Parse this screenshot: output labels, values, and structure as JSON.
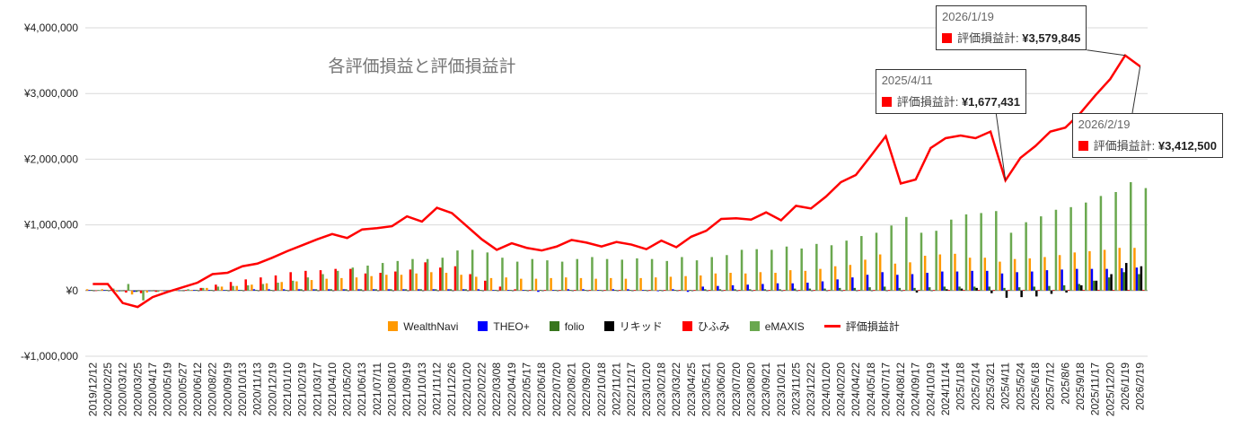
{
  "chart_data": {
    "type": "bar",
    "title": "各評価損益と評価損益計",
    "categories": [
      "2019/12/12",
      "2020/02/25",
      "2020/03/12",
      "2020/03/25",
      "2020/04/17",
      "2020/05/19",
      "2020/05/27",
      "2020/06/12",
      "2020/08/22",
      "2020/09/19",
      "2020/10/13",
      "2020/11/13",
      "2020/12/19",
      "2021/01/10",
      "2021/02/19",
      "2021/03/17",
      "2021/04/10",
      "2021/05/20",
      "2021/06/13",
      "2021/07/11",
      "2021/08/10",
      "2021/09/19",
      "2021/10/13",
      "2021/11/12",
      "2021/12/26",
      "2022/01/20",
      "2022/02/22",
      "2022/03/08",
      "2022/04/19",
      "2022/05/17",
      "2022/06/18",
      "2022/07/20",
      "2022/08/21",
      "2022/09/20",
      "2022/10/18",
      "2022/11/21",
      "2022/12/17",
      "2023/01/20",
      "2023/02/18",
      "2023/03/22",
      "2023/04/25",
      "2023/05/21",
      "2023/06/20",
      "2023/07/20",
      "2023/08/20",
      "2023/09/21",
      "2023/10/21",
      "2023/11/25",
      "2023/12/22",
      "2024/01/20",
      "2024/02/20",
      "2024/04/22",
      "2024/05/18",
      "2024/07/17",
      "2024/08/12",
      "2024/09/17",
      "2024/10/19",
      "2024/11/14",
      "2025/1/18",
      "2025/2/14",
      "2025/3/21",
      "2025/4/11",
      "2025/5/24",
      "2025/6/18",
      "2025/7/12",
      "2025/8/6",
      "2025/9/18",
      "2025/11/17",
      "2025/12/20",
      "2026/1/19",
      "2026/2/19"
    ],
    "series": [
      {
        "name": "WealthNavi",
        "color": "#ff9900",
        "values": [
          20000,
          20000,
          -20000,
          -60000,
          -30000,
          -10000,
          0,
          10000,
          40000,
          60000,
          70000,
          90000,
          110000,
          130000,
          140000,
          160000,
          180000,
          190000,
          200000,
          220000,
          240000,
          240000,
          260000,
          280000,
          270000,
          240000,
          210000,
          190000,
          200000,
          180000,
          180000,
          190000,
          200000,
          190000,
          180000,
          190000,
          180000,
          190000,
          200000,
          210000,
          220000,
          230000,
          260000,
          270000,
          260000,
          280000,
          270000,
          310000,
          300000,
          330000,
          370000,
          390000,
          470000,
          550000,
          410000,
          430000,
          530000,
          550000,
          560000,
          500000,
          500000,
          440000,
          480000,
          490000,
          510000,
          540000,
          580000,
          600000,
          620000,
          650000,
          650000
        ]
      },
      {
        "name": "THEO+",
        "color": "#0000ff",
        "values": [
          10000,
          10000,
          -10000,
          -20000,
          -10000,
          0,
          0,
          10000,
          10000,
          10000,
          10000,
          20000,
          20000,
          20000,
          20000,
          20000,
          20000,
          20000,
          20000,
          20000,
          20000,
          20000,
          20000,
          20000,
          20000,
          20000,
          20000,
          10000,
          10000,
          10000,
          -20000,
          10000,
          20000,
          20000,
          10000,
          20000,
          20000,
          10000,
          -10000,
          20000,
          -20000,
          60000,
          70000,
          80000,
          90000,
          100000,
          110000,
          110000,
          120000,
          140000,
          170000,
          200000,
          240000,
          280000,
          240000,
          250000,
          270000,
          290000,
          290000,
          300000,
          300000,
          260000,
          280000,
          290000,
          310000,
          320000,
          330000,
          330000,
          330000,
          340000,
          350000
        ]
      },
      {
        "name": "folio",
        "color": "#38761d",
        "values": [
          10000,
          10000,
          -10000,
          -20000,
          -10000,
          0,
          0,
          10000,
          10000,
          10000,
          10000,
          10000,
          10000,
          10000,
          20000,
          20000,
          20000,
          20000,
          20000,
          20000,
          20000,
          20000,
          20000,
          20000,
          20000,
          20000,
          10000,
          10000,
          10000,
          10000,
          10000,
          10000,
          10000,
          10000,
          10000,
          10000,
          10000,
          10000,
          10000,
          10000,
          10000,
          20000,
          20000,
          20000,
          20000,
          20000,
          20000,
          30000,
          30000,
          30000,
          40000,
          40000,
          50000,
          60000,
          40000,
          40000,
          50000,
          60000,
          60000,
          60000,
          60000,
          40000,
          50000,
          60000,
          70000,
          80000,
          100000,
          150000,
          200000,
          280000,
          250000
        ]
      },
      {
        "name": "リキッド",
        "color": "#000000",
        "values": [
          0,
          0,
          0,
          0,
          0,
          0,
          0,
          0,
          0,
          0,
          0,
          0,
          0,
          0,
          0,
          0,
          0,
          0,
          0,
          0,
          0,
          0,
          0,
          0,
          0,
          0,
          0,
          0,
          0,
          0,
          0,
          0,
          0,
          0,
          0,
          0,
          0,
          0,
          0,
          0,
          0,
          0,
          0,
          0,
          0,
          0,
          0,
          0,
          0,
          0,
          0,
          0,
          0,
          0,
          0,
          -30000,
          0,
          20000,
          30000,
          40000,
          -40000,
          -110000,
          -100000,
          -90000,
          -50000,
          -30000,
          80000,
          150000,
          250000,
          420000,
          370000
        ]
      },
      {
        "name": "ひふみ",
        "color": "#ff0000",
        "values": [
          0,
          10000,
          -30000,
          -40000,
          -20000,
          0,
          10000,
          40000,
          90000,
          130000,
          170000,
          200000,
          230000,
          280000,
          300000,
          310000,
          330000,
          330000,
          260000,
          270000,
          290000,
          320000,
          430000,
          350000,
          370000,
          250000,
          150000,
          60000,
          20000,
          10000,
          10000,
          10000,
          10000,
          10000,
          10000,
          10000,
          10000,
          10000,
          10000,
          10000,
          10000,
          10000,
          10000,
          10000,
          10000,
          10000,
          10000,
          10000,
          10000,
          10000,
          10000,
          10000,
          10000,
          10000,
          10000,
          10000,
          10000,
          10000,
          10000,
          10000,
          10000,
          10000,
          10000,
          10000,
          10000,
          10000,
          10000,
          10000,
          10000,
          10000,
          10000
        ]
      },
      {
        "name": "eMAXIS",
        "color": "#6aa84f",
        "values": [
          10000,
          30000,
          100000,
          -150000,
          -20000,
          10000,
          20000,
          40000,
          60000,
          70000,
          80000,
          100000,
          120000,
          150000,
          200000,
          250000,
          300000,
          350000,
          380000,
          420000,
          450000,
          480000,
          480000,
          500000,
          610000,
          620000,
          580000,
          500000,
          440000,
          480000,
          460000,
          440000,
          480000,
          510000,
          480000,
          470000,
          490000,
          480000,
          450000,
          510000,
          460000,
          510000,
          540000,
          620000,
          630000,
          620000,
          670000,
          640000,
          710000,
          690000,
          760000,
          830000,
          880000,
          990000,
          1120000,
          880000,
          910000,
          1080000,
          1160000,
          1180000,
          1210000,
          880000,
          1040000,
          1130000,
          1230000,
          1270000,
          1340000,
          1440000,
          1500000,
          1650000,
          1560000
        ]
      },
      {
        "name": "評価損益計",
        "color": "#ff0000",
        "type": "line",
        "values": [
          100000,
          100000,
          -190000,
          -250000,
          -100000,
          -20000,
          50000,
          120000,
          250000,
          270000,
          370000,
          410000,
          500000,
          600000,
          690000,
          780000,
          860000,
          800000,
          930000,
          950000,
          980000,
          1130000,
          1050000,
          1260000,
          1180000,
          980000,
          780000,
          620000,
          720000,
          650000,
          610000,
          670000,
          770000,
          730000,
          670000,
          740000,
          700000,
          630000,
          760000,
          660000,
          820000,
          910000,
          1090000,
          1100000,
          1080000,
          1190000,
          1070000,
          1290000,
          1250000,
          1430000,
          1650000,
          1760000,
          2050000,
          2350000,
          1630000,
          1690000,
          2170000,
          2320000,
          2360000,
          2320000,
          2420000,
          1677431,
          2020000,
          2200000,
          2420000,
          2480000,
          2700000,
          2970000,
          3220000,
          3579845,
          3412500
        ],
        "value_labels": [
          null,
          null,
          null,
          null,
          null,
          null,
          null,
          null,
          null,
          null,
          null,
          null,
          null,
          null,
          null,
          null,
          null,
          null,
          null,
          null,
          null,
          null,
          null,
          null,
          null,
          null,
          null,
          null,
          null,
          null,
          null,
          null,
          null,
          null,
          null,
          null,
          null,
          null,
          null,
          null,
          null,
          null,
          null,
          null,
          null,
          null,
          null,
          null,
          null,
          null,
          null,
          null,
          null,
          null,
          null,
          null,
          null,
          null,
          null,
          null,
          null,
          "¥1,677,431",
          null,
          null,
          null,
          null,
          null,
          null,
          null,
          "¥3,579,845",
          "¥3,412,500"
        ]
      }
    ],
    "ylim": [
      -1000000,
      4000000
    ],
    "yticks": [
      {
        "value": -1000000,
        "label": "-¥1,000,000"
      },
      {
        "value": 0,
        "label": "¥0"
      },
      {
        "value": 1000000,
        "label": "¥1,000,000"
      },
      {
        "value": 2000000,
        "label": "¥2,000,000"
      },
      {
        "value": 3000000,
        "label": "¥3,000,000"
      },
      {
        "value": 4000000,
        "label": "¥4,000,000"
      }
    ],
    "grid": true,
    "legend": "bottom"
  }
}
